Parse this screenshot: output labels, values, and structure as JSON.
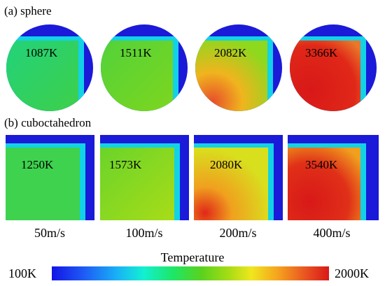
{
  "rows": {
    "sphere": {
      "label": "(a) sphere",
      "temperatures": [
        "1087K",
        "1511K",
        "2082K",
        "3366K"
      ]
    },
    "cuboctahedron": {
      "label": "(b) cuboctahedron",
      "temperatures": [
        "1250K",
        "1573K",
        "2080K",
        "3540K"
      ]
    }
  },
  "speeds": [
    "50m/s",
    "100m/s",
    "200m/s",
    "400m/s"
  ],
  "colorbar": {
    "title": "Temperature",
    "min_label": "100K",
    "max_label": "2000K",
    "colors": {
      "cold": "#1414e6",
      "cool": "#12f0d2",
      "warm": "#5ad21e",
      "hot": "#f0e61e",
      "max": "#d81818"
    }
  }
}
